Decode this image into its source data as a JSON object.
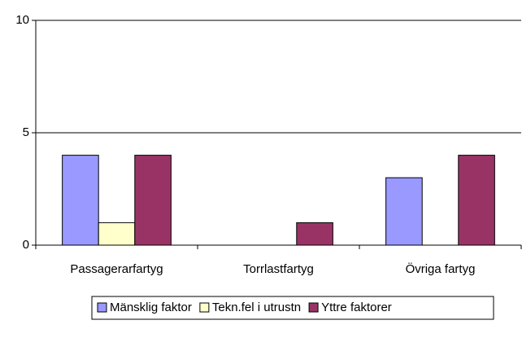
{
  "chart_data": {
    "type": "bar",
    "categories": [
      "Passagerarfartyg",
      "Torrlastfartyg",
      "Övriga fartyg"
    ],
    "series": [
      {
        "name": "Mänsklig faktor",
        "color": "#9999ff",
        "values": [
          4,
          0,
          3
        ]
      },
      {
        "name": "Tekn.fel i utrustn",
        "color": "#ffffcc",
        "values": [
          1,
          0,
          0
        ]
      },
      {
        "name": "Yttre faktorer",
        "color": "#993366",
        "values": [
          4,
          1,
          4
        ]
      }
    ],
    "ylim": [
      0,
      10
    ],
    "yticks": [
      0,
      5,
      10
    ],
    "grid": true,
    "legend": "bottom"
  }
}
